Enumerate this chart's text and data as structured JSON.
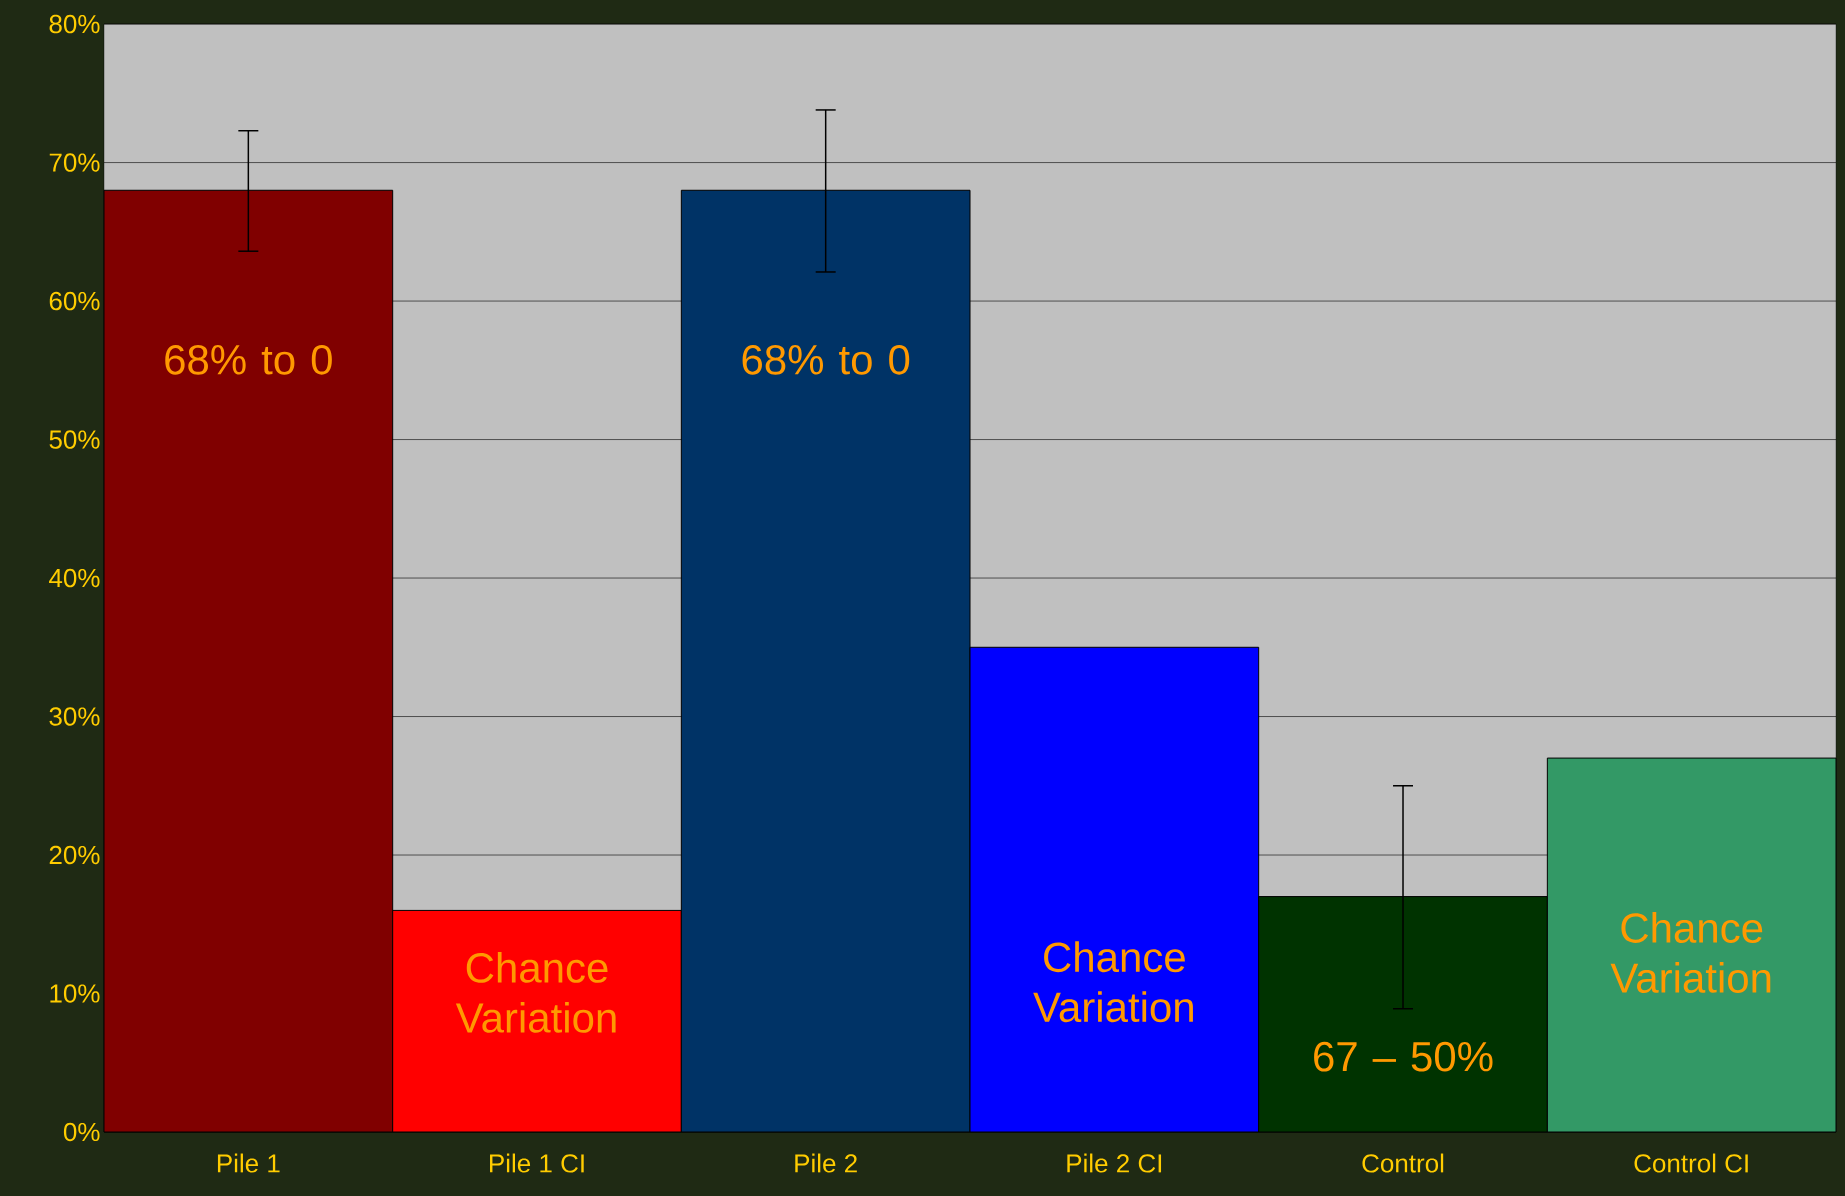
{
  "chart_data": {
    "type": "bar",
    "categories": [
      "Pile 1",
      "Pile 1 CI",
      "Pile 2",
      "Pile 2 CI",
      "Control",
      "Control CI"
    ],
    "values": [
      68,
      16,
      68,
      35,
      17,
      27
    ],
    "colors": [
      "#800000",
      "#ff0000",
      "#003366",
      "#0000ff",
      "#003300",
      "#339966"
    ],
    "errors": [
      [
        63.6,
        72.3
      ],
      null,
      [
        62.1,
        73.8
      ],
      null,
      [
        8.9,
        25
      ],
      null
    ],
    "ylim": [
      0,
      80
    ],
    "yticks": [
      {
        "value": 0,
        "label": "0%"
      },
      {
        "value": 10,
        "label": "10%"
      },
      {
        "value": 20,
        "label": "20%"
      },
      {
        "value": 30,
        "label": "30%"
      },
      {
        "value": 40,
        "label": "40%"
      },
      {
        "value": 50,
        "label": "50%"
      },
      {
        "value": 60,
        "label": "60%"
      },
      {
        "value": 70,
        "label": "70%"
      },
      {
        "value": 80,
        "label": "80%"
      }
    ],
    "grid": "y",
    "annotations": [
      "68% to 0",
      "Chance Variation",
      "68% to 0",
      "Chance Variation",
      "67 – 50%",
      "Chance Variation"
    ]
  }
}
